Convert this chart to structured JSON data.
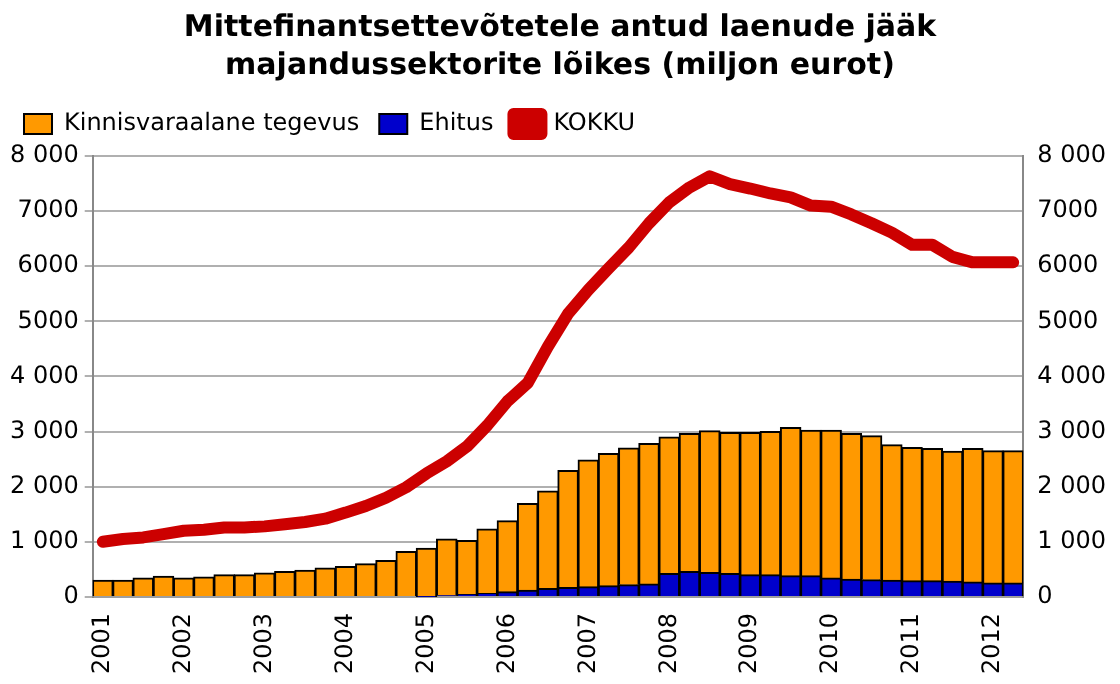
{
  "chart_data": {
    "type": "bar",
    "title": "Mittefinantsettevõtetele antud laenude jääk majandussektorite lõikes (miljon eurot)",
    "categories": [
      "2001",
      null,
      null,
      null,
      "2002",
      null,
      null,
      null,
      "2003",
      null,
      null,
      null,
      "2004",
      null,
      null,
      null,
      "2005",
      null,
      null,
      null,
      "2006",
      null,
      null,
      null,
      "2007",
      null,
      null,
      null,
      "2008",
      null,
      null,
      null,
      "2009",
      null,
      null,
      null,
      "2010",
      null,
      null,
      null,
      "2011",
      null,
      null,
      null,
      "2012",
      null
    ],
    "stacked": true,
    "series": [
      {
        "name": "Ehitus",
        "color": "#0000cc",
        "values": [
          0,
          0,
          0,
          0,
          0,
          0,
          0,
          0,
          0,
          0,
          0,
          0,
          0,
          0,
          0,
          0,
          10,
          20,
          40,
          60,
          90,
          120,
          150,
          170,
          180,
          200,
          220,
          230,
          420,
          460,
          440,
          420,
          400,
          400,
          380,
          380,
          340,
          320,
          310,
          300,
          290,
          290,
          280,
          270,
          250,
          250
        ]
      },
      {
        "name": "Kinnisvaraalane tegevus",
        "color": "#ff9900",
        "values": [
          300,
          300,
          340,
          370,
          340,
          360,
          400,
          400,
          430,
          460,
          480,
          520,
          550,
          600,
          660,
          820,
          870,
          1030,
          980,
          1170,
          1290,
          1570,
          1770,
          2120,
          2300,
          2400,
          2480,
          2550,
          2480,
          2500,
          2570,
          2560,
          2580,
          2600,
          2690,
          2640,
          2680,
          2640,
          2610,
          2460,
          2420,
          2400,
          2360,
          2420,
          2400,
          2400
        ]
      },
      {
        "name": "KOKKU",
        "type": "line",
        "color": "#cc0000",
        "values": [
          1000,
          1050,
          1080,
          1140,
          1200,
          1220,
          1260,
          1260,
          1280,
          1320,
          1360,
          1420,
          1530,
          1650,
          1800,
          1990,
          2240,
          2460,
          2730,
          3110,
          3550,
          3880,
          4540,
          5140,
          5570,
          5960,
          6340,
          6780,
          7160,
          7430,
          7630,
          7490,
          7410,
          7320,
          7250,
          7100,
          7080,
          6940,
          6780,
          6610,
          6390,
          6390,
          6170,
          6070,
          6070,
          6070
        ]
      }
    ],
    "ylim": [
      0,
      8000
    ],
    "yticks": [
      0,
      {
        "value": 1000,
        "label": "1 000"
      },
      {
        "value": 2000,
        "label": "2 000"
      },
      {
        "value": 3000,
        "label": "3 000"
      },
      {
        "value": 4000,
        "label": "4 000"
      },
      5000,
      6000,
      7000,
      {
        "value": 8000,
        "label": "8 000"
      }
    ],
    "y2lim": [
      0,
      8000
    ],
    "y2ticks": [
      0,
      {
        "value": 1000,
        "label": "1 000"
      },
      {
        "value": 2000,
        "label": "2 000"
      },
      {
        "value": 3000,
        "label": "3 000"
      },
      {
        "value": 4000,
        "label": "4 000"
      },
      5000,
      6000,
      7000,
      {
        "value": 8000,
        "label": "8 000"
      }
    ],
    "grid": "y",
    "legend": "top left"
  }
}
